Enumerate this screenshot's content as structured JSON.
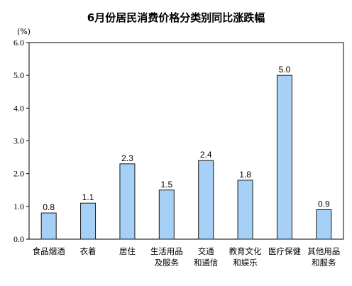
{
  "chart_data": {
    "type": "bar",
    "title": "6月份居民消费价格分类别同比涨跌幅",
    "unit": "(%)",
    "categories": [
      [
        "食品烟酒"
      ],
      [
        "衣着"
      ],
      [
        "居住"
      ],
      [
        "生活用品",
        "及服务"
      ],
      [
        "交通",
        "和通信"
      ],
      [
        "教育文化",
        "和娱乐"
      ],
      [
        "医疗保健"
      ],
      [
        "其他用品",
        "和服务"
      ]
    ],
    "values": [
      0.8,
      1.1,
      2.3,
      1.5,
      2.4,
      1.8,
      5.0,
      0.9
    ],
    "value_labels": [
      "0.8",
      "1.1",
      "2.3",
      "1.5",
      "2.4",
      "1.8",
      "5.0",
      "0.9"
    ],
    "ylim": [
      0,
      6
    ],
    "yticks": [
      "0.0",
      "1.0",
      "2.0",
      "3.0",
      "4.0",
      "5.0",
      "6.0"
    ],
    "grid": false,
    "bar_color": "#a6d0f5",
    "bar_edge_color": "#1a1a1a"
  }
}
